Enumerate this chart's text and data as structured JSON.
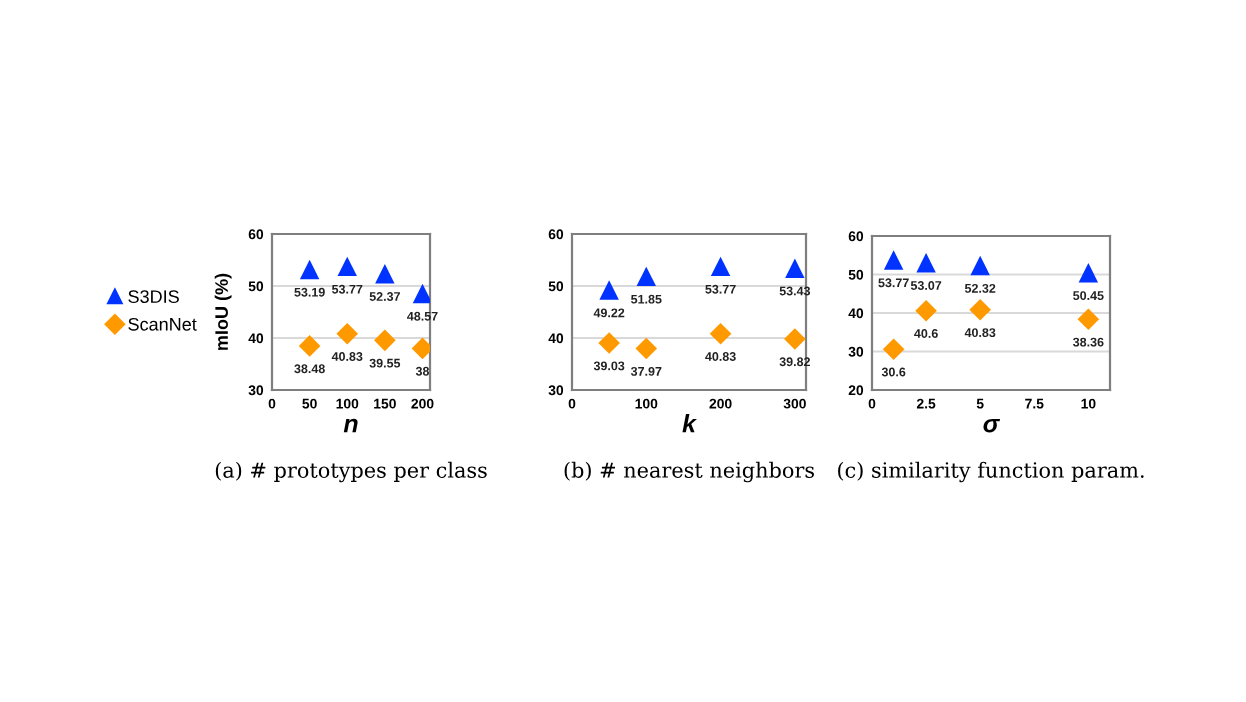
{
  "chart_data": [
    {
      "type": "scatter",
      "xlabel": "n",
      "ylabel": "mIoU (%)",
      "x": [
        50,
        100,
        150,
        200
      ],
      "xlim": [
        0,
        210
      ],
      "xticks": [
        0,
        50,
        100,
        150,
        200
      ],
      "ylim": [
        30,
        60
      ],
      "yticks": [
        30,
        40,
        50,
        60
      ],
      "grid": "y",
      "legend": "left",
      "annotations": [
        "(a) # prototypes per class"
      ],
      "series": [
        {
          "name": "S3DIS",
          "color": "#0033ff",
          "marker": "triangle",
          "values": [
            53.19,
            53.77,
            52.37,
            48.57
          ],
          "value_labels": [
            "53.19",
            "53.77",
            "52.37",
            "48.57"
          ]
        },
        {
          "name": "ScanNet",
          "color": "#ff9900",
          "marker": "diamond",
          "values": [
            38.48,
            40.83,
            39.55,
            38
          ],
          "value_labels": [
            "38.48",
            "40.83",
            "39.55",
            "38"
          ]
        }
      ]
    },
    {
      "type": "scatter",
      "xlabel": "k",
      "x": [
        50,
        100,
        200,
        300
      ],
      "xlim": [
        0,
        315
      ],
      "xticks": [
        0,
        100,
        200,
        300
      ],
      "ylim": [
        30,
        60
      ],
      "yticks": [
        30,
        40,
        50,
        60
      ],
      "grid": "y",
      "annotations": [
        "(b) # nearest neighbors"
      ],
      "series": [
        {
          "color": "#0033ff",
          "marker": "triangle",
          "values": [
            49.22,
            51.85,
            53.77,
            53.43
          ],
          "value_labels": [
            "49.22",
            "51.85",
            "53.77",
            "53.43"
          ]
        },
        {
          "color": "#ff9900",
          "marker": "diamond",
          "values": [
            39.03,
            37.97,
            40.83,
            39.82
          ],
          "value_labels": [
            "39.03",
            "37.97",
            "40.83",
            "39.82"
          ]
        }
      ]
    },
    {
      "type": "scatter",
      "xlabel": "σ",
      "x": [
        1,
        2.5,
        5,
        10
      ],
      "xlim": [
        0,
        11
      ],
      "xticks": [
        0,
        2.5,
        5,
        7.5,
        10
      ],
      "ylim": [
        20,
        60
      ],
      "yticks": [
        20,
        30,
        40,
        50,
        60
      ],
      "grid": "y",
      "annotations": [
        "(c) similarity function param."
      ],
      "series": [
        {
          "color": "#0033ff",
          "marker": "triangle",
          "values": [
            53.77,
            53.07,
            52.32,
            50.45
          ],
          "value_labels": [
            "53.77",
            "53.07",
            "52.32",
            "50.45"
          ]
        },
        {
          "color": "#ff9900",
          "marker": "diamond",
          "values": [
            30.6,
            40.6,
            40.83,
            38.36
          ],
          "value_labels": [
            "30.6",
            "40.6",
            "40.83",
            "38.36"
          ]
        }
      ]
    }
  ]
}
